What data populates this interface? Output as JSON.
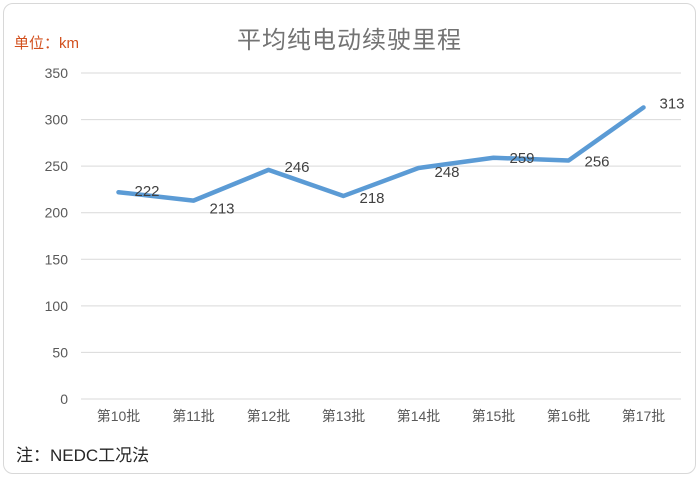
{
  "header": {
    "title": "平均纯电动续驶里程",
    "unit_label": "单位：km"
  },
  "footnote": "注：NEDC工况法",
  "colors": {
    "line": "#5B9BD5",
    "gridline": "#d9d9d9",
    "axis_label": "#595959",
    "data_label": "#404040",
    "title": "#737373",
    "unit_label": "#d2501e"
  },
  "chart_data": {
    "type": "line",
    "title": "平均纯电动续驶里程",
    "unit": "km",
    "categories": [
      "第10批",
      "第11批",
      "第12批",
      "第13批",
      "第14批",
      "第15批",
      "第16批",
      "第17批"
    ],
    "series": [
      {
        "name": "平均纯电动续驶里程",
        "values": [
          222,
          213,
          246,
          218,
          248,
          259,
          256,
          313
        ]
      }
    ],
    "ylim": [
      0,
      350
    ],
    "ytick_interval": 50,
    "yticks": [
      0,
      50,
      100,
      150,
      200,
      250,
      300,
      350
    ],
    "grid": true,
    "data_labels": true,
    "legend": "none",
    "note": "注：NEDC工况法"
  }
}
